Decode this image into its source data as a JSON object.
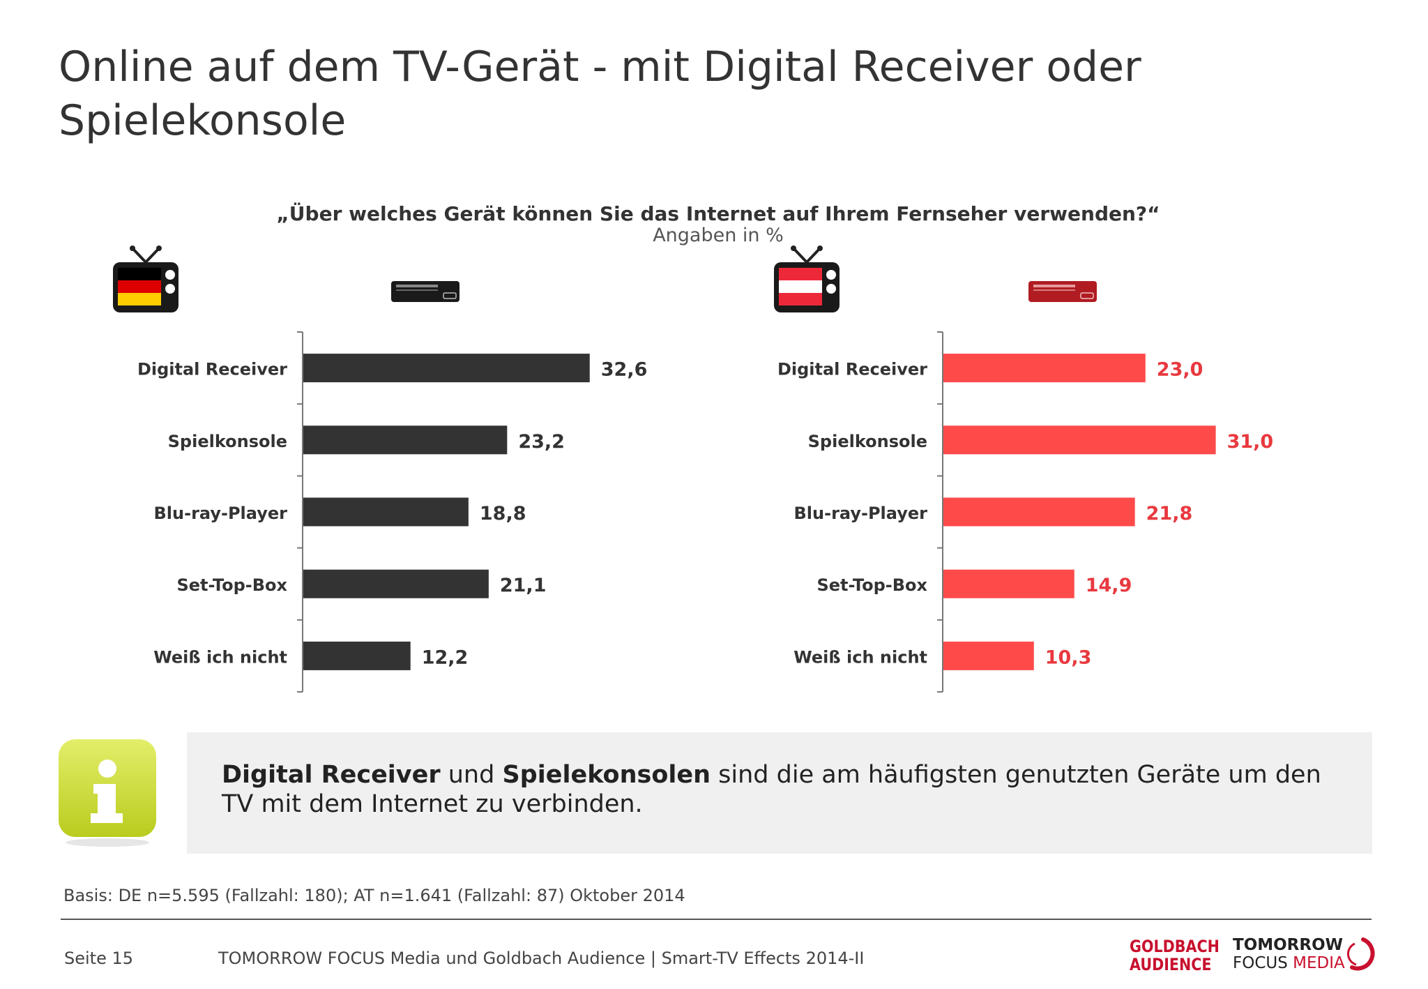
{
  "title": "Online auf dem TV-Gerät - mit Digital Receiver oder Spielekonsole",
  "question": "„Über welches Gerät können Sie das Internet auf Ihrem Fernseher verwenden?“",
  "unit_note": "Angaben in %",
  "colors": {
    "de_bar": "#333333",
    "at_bar": "#ff4a4a",
    "at_label": "#e8393f",
    "de_label": "#333333"
  },
  "icons": [
    "tv-germany-flag-icon",
    "set-top-box-icon",
    "tv-austria-flag-icon",
    "set-top-box-red-icon",
    "info-icon"
  ],
  "chart_data": [
    {
      "type": "bar",
      "orientation": "horizontal",
      "categories": [
        "Digital Receiver",
        "Spielkonsole",
        "Blu-ray-Player",
        "Set-Top-Box",
        "Weiß ich nicht"
      ],
      "values": [
        32.6,
        23.2,
        18.8,
        21.1,
        12.2
      ],
      "value_labels": [
        "32,6",
        "23,2",
        "18,8",
        "21,1",
        "12,2"
      ],
      "xlim": [
        0,
        40
      ],
      "grid": false
    },
    {
      "type": "bar",
      "orientation": "horizontal",
      "categories": [
        "Digital Receiver",
        "Spielkonsole",
        "Blu-ray-Player",
        "Set-Top-Box",
        "Weiß ich nicht"
      ],
      "values": [
        23.0,
        31.0,
        21.8,
        14.9,
        10.3
      ],
      "value_labels": [
        "23,0",
        "31,0",
        "21,8",
        "14,9",
        "10,3"
      ],
      "xlim": [
        0,
        40
      ],
      "grid": false
    }
  ],
  "info": {
    "bold1": "Digital Receiver",
    "text1": " und ",
    "bold2": "Spielekonsolen",
    "text2": " sind die am häufigsten genutzten Geräte um den TV mit dem Internet zu verbinden."
  },
  "basis": "Basis: DE n=5.595 (Fallzahl: 180); AT n=1.641 (Fallzahl: 87) Oktober 2014",
  "footer": {
    "page": "Seite 15",
    "text": "TOMORROW FOCUS Media und Goldbach Audience | Smart-TV Effects 2014-II"
  },
  "logos": {
    "goldbach_line1": "GOLDBACH",
    "goldbach_line2": "AUDIENCE",
    "tomorrow_line1": "TOMORROW",
    "tomorrow_focus": "FOCUS ",
    "tomorrow_media": "MEDIA"
  }
}
